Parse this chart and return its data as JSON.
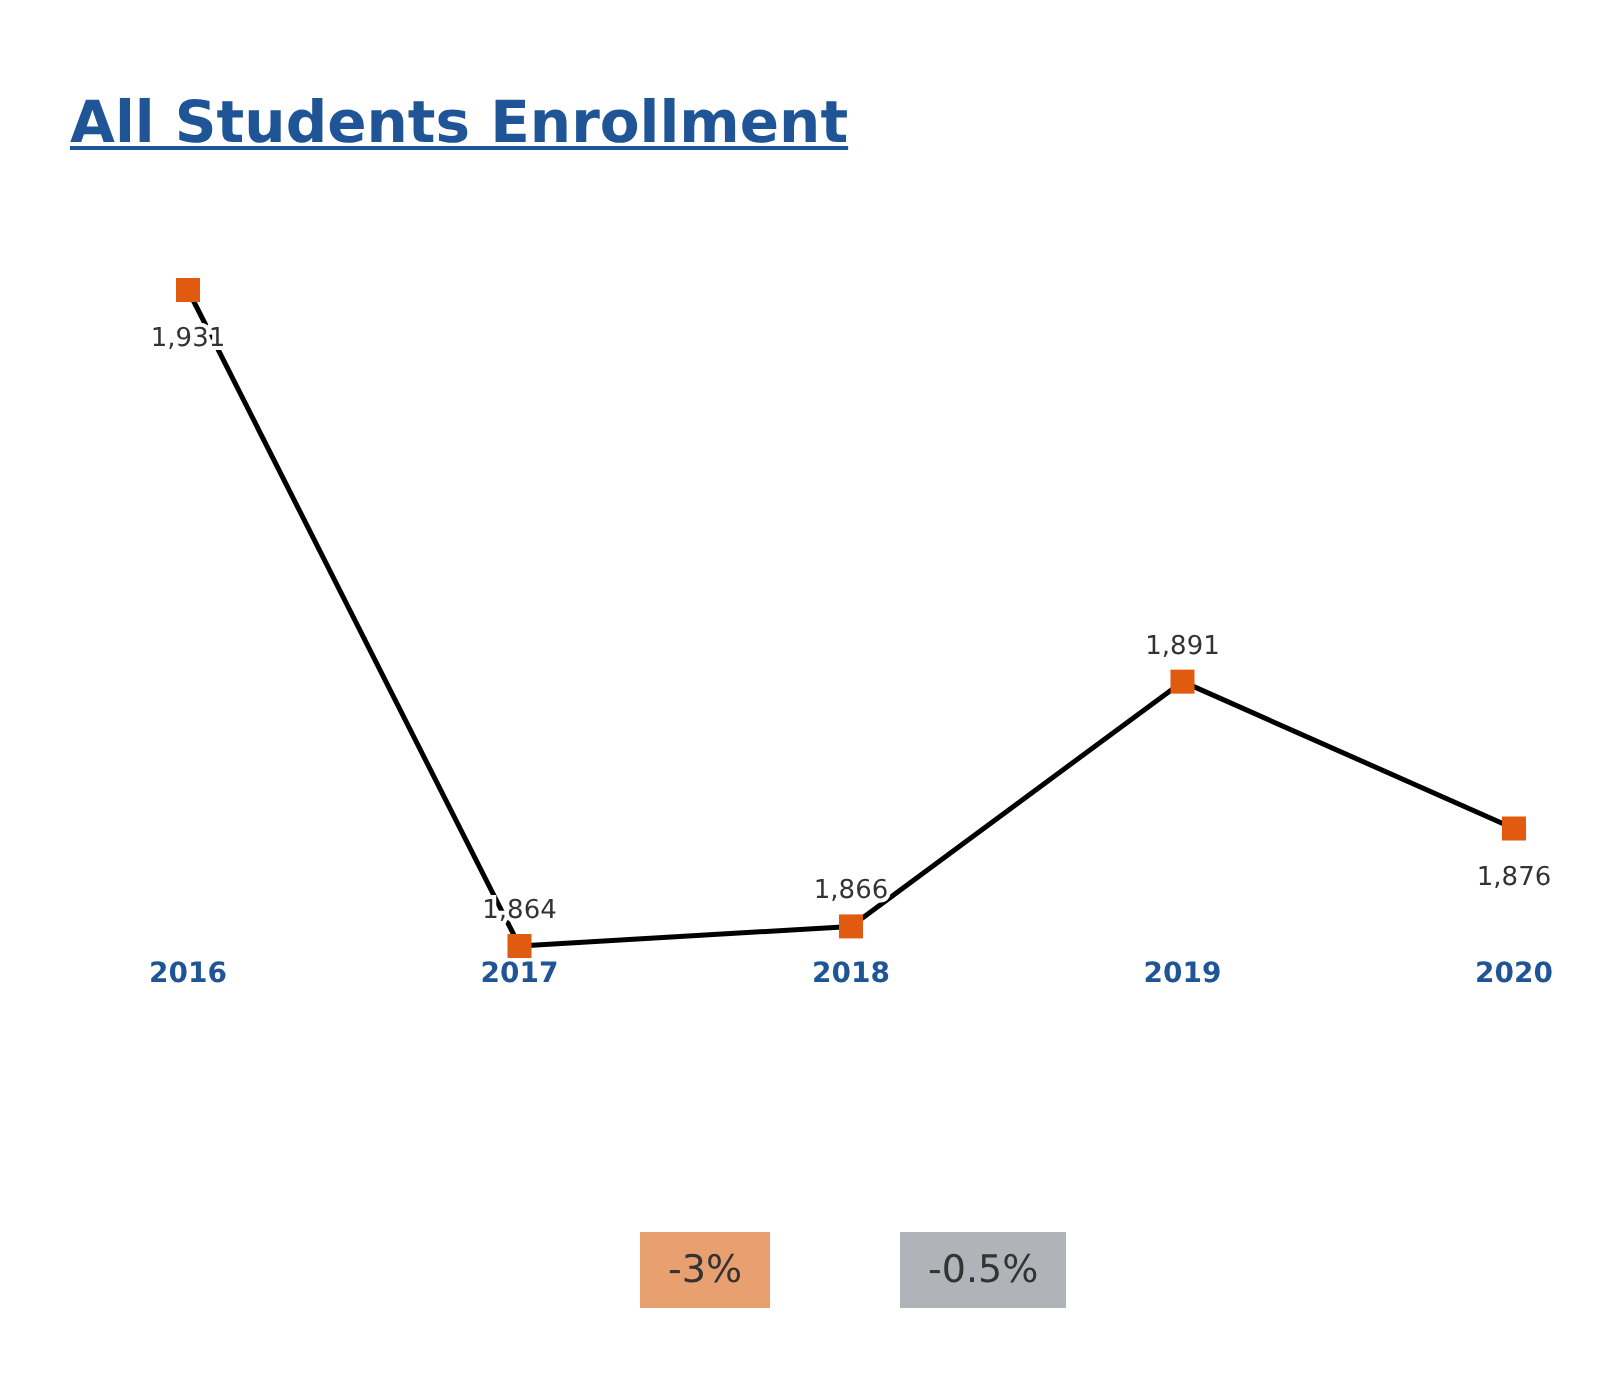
{
  "chart_data": {
    "type": "line",
    "title": "All Students Enrollment",
    "categories": [
      "2016",
      "2017",
      "2018",
      "2019",
      "2020"
    ],
    "series": [
      {
        "color": "#000000",
        "colors": [
          "#e05a10",
          "#e05a10",
          "#e05a10",
          "#e05a10",
          "#e05a10"
        ],
        "values": [
          1931,
          1864,
          1866,
          1891,
          1876
        ],
        "value_labels": [
          "1,931",
          "1,864",
          "1,866",
          "1,891",
          "1,876"
        ]
      }
    ],
    "marker": "square",
    "grid": false,
    "legend": false,
    "annotations": [
      "-3%",
      "-0.5%"
    ]
  }
}
